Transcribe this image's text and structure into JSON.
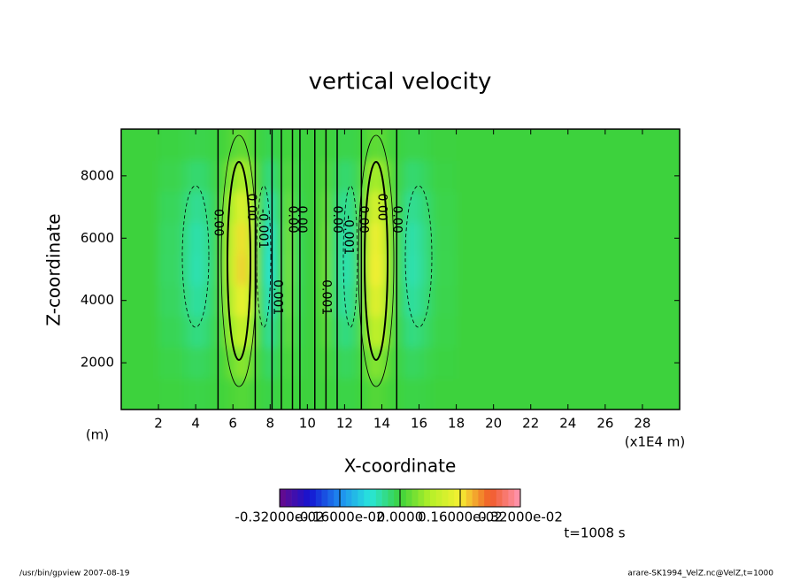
{
  "chart_data": {
    "type": "contour",
    "title": "vertical velocity",
    "xlabel": "X-coordinate",
    "ylabel": "Z-coordinate",
    "xunit": "(x1E4 m)",
    "yunit": "(m)",
    "time_label": "t=1008 s",
    "footer_left": "/usr/bin/gpview  2007-08-19",
    "footer_right": "arare-SK1994_VelZ.nc@VelZ,t=1000",
    "xlim": [
      0,
      30
    ],
    "ylim": [
      500,
      9500
    ],
    "xticks": [
      2,
      4,
      6,
      8,
      10,
      12,
      14,
      16,
      18,
      20,
      22,
      24,
      26,
      28
    ],
    "yticks": [
      2000,
      4000,
      6000,
      8000
    ],
    "x": [
      1,
      3,
      3.5,
      4,
      4.5,
      5,
      5.5,
      6,
      6.5,
      7,
      7.5,
      8,
      8.5,
      9,
      9.5,
      10,
      10.5,
      11,
      11.5,
      12,
      12.5,
      13,
      13.5,
      14,
      14.5,
      15,
      15.5,
      16,
      16.5,
      17,
      19,
      25
    ],
    "z": [
      1000,
      2000,
      3000,
      4000,
      5000,
      6000,
      7000,
      8000,
      9000
    ],
    "values": [
      [
        0,
        -2e-05,
        -4e-05,
        -6e-05,
        -5e-05,
        -2e-05,
        4e-05,
        0.00012,
        0.00018,
        0.0001,
        -2e-05,
        -8e-05,
        -2e-05,
        4e-05,
        -2e-05,
        0,
        0,
        4e-05,
        -3e-05,
        -6e-05,
        -4e-05,
        4e-05,
        0.00016,
        0.00014,
        4e-05,
        -2e-05,
        -6e-05,
        -5e-05,
        -3e-05,
        -1e-05,
        0,
        0
      ],
      [
        0,
        -6e-05,
        -0.00012,
        -0.00018,
        -0.00015,
        -6e-05,
        0.00012,
        0.00036,
        0.00054,
        0.0003,
        -6e-05,
        -0.00024,
        -6e-05,
        0.00012,
        -6e-05,
        0,
        0,
        0.00012,
        -9e-05,
        -0.00018,
        -0.00012,
        0.00012,
        0.00048,
        0.00042,
        0.00012,
        -6e-05,
        -0.00018,
        -0.00015,
        -9e-05,
        -3e-05,
        0,
        0
      ],
      [
        0,
        -0.00012,
        -0.00024,
        -0.00036,
        -0.0003,
        -0.00012,
        0.00024,
        0.00072,
        0.00108,
        0.0006,
        -0.00012,
        -0.00048,
        -0.00012,
        0.00024,
        -0.00012,
        0,
        0,
        0.00024,
        -0.00018,
        -0.00036,
        -0.00024,
        0.00024,
        0.00096,
        0.00084,
        0.00024,
        -0.00012,
        -0.00036,
        -0.0003,
        -0.00018,
        -6e-05,
        0,
        0
      ],
      [
        0,
        -0.00017,
        -0.00034,
        -0.00051,
        -0.000425,
        -0.00017,
        0.00034,
        0.00102,
        0.00153,
        0.00085,
        -0.00017,
        -0.00068,
        -0.00017,
        0.00034,
        -0.00017,
        0,
        0,
        0.00034,
        -0.000255,
        -0.00051,
        -0.00034,
        0.00034,
        0.00136,
        0.00119,
        0.00034,
        -0.00017,
        -0.00051,
        -0.000425,
        -0.000255,
        -8.5e-05,
        0,
        0
      ],
      [
        0,
        -0.0002,
        -0.0004,
        -0.0006,
        -0.0005,
        -0.0002,
        0.0004,
        0.0012,
        0.0018,
        0.001,
        -0.0002,
        -0.0008,
        -0.0002,
        0.0004,
        -0.0002,
        0,
        0,
        0.0004,
        -0.0003,
        -0.0006,
        -0.0004,
        0.0004,
        0.0016,
        0.0014,
        0.0004,
        -0.0002,
        -0.0006,
        -0.0005,
        -0.0003,
        -0.0001,
        0,
        0
      ],
      [
        0,
        -0.00019,
        -0.00038,
        -0.00057,
        -0.000475,
        -0.00019,
        0.00038,
        0.00114,
        0.00171,
        0.00095,
        -0.00019,
        -0.00076,
        -0.00019,
        0.00038,
        -0.00019,
        0,
        0,
        0.00038,
        -0.000285,
        -0.00057,
        -0.00038,
        0.00038,
        0.00152,
        0.00133,
        0.00038,
        -0.00019,
        -0.00057,
        -0.000475,
        -0.000285,
        -9.5e-05,
        0,
        0
      ],
      [
        0,
        -0.00015,
        -0.0003,
        -0.00045,
        -0.000375,
        -0.00015,
        0.0003,
        0.0009,
        0.00135,
        0.00075,
        -0.00015,
        -0.0006,
        -0.00015,
        0.0003,
        -0.00015,
        0,
        0,
        0.0003,
        -0.000225,
        -0.00045,
        -0.0003,
        0.0003,
        0.0012,
        0.00105,
        0.0003,
        -0.00015,
        -0.00045,
        -0.000375,
        -0.000225,
        -7.5e-05,
        0,
        0
      ],
      [
        0,
        -9e-05,
        -0.00018,
        -0.00027,
        -0.000225,
        -9e-05,
        0.00018,
        0.00054,
        0.00081,
        0.00045,
        -9e-05,
        -0.00036,
        -9e-05,
        0.00018,
        -9e-05,
        0,
        0,
        0.00018,
        -0.000135,
        -0.00027,
        -0.00018,
        0.00018,
        0.00072,
        0.00063,
        0.00018,
        -9e-05,
        -0.00027,
        -0.000225,
        -0.000135,
        -4.5e-05,
        0,
        0
      ],
      [
        0,
        -3e-05,
        -6e-05,
        -9e-05,
        -7.5e-05,
        -3e-05,
        6e-05,
        0.00018,
        0.00027,
        0.00015,
        -3e-05,
        -0.00012,
        -3e-05,
        6e-05,
        -3e-05,
        0,
        0,
        6e-05,
        -4.5e-05,
        -9e-05,
        -6e-05,
        6e-05,
        0.00024,
        0.00021,
        6e-05,
        -3e-05,
        -9e-05,
        -7.5e-05,
        -4.5e-05,
        -1.5e-05,
        0,
        0
      ]
    ],
    "zero_contours_x": [
      5.2,
      7.2,
      8.1,
      8.6,
      9.2,
      9.6,
      10.4,
      11.0,
      11.6,
      12.9,
      14.8
    ],
    "contour_labels": [
      {
        "x": 5.2,
        "z": 6500,
        "text": "0.00"
      },
      {
        "x": 7.0,
        "z": 7000,
        "text": "0.00"
      },
      {
        "x": 7.6,
        "z": 6300,
        "text": "-0.001"
      },
      {
        "x": 8.4,
        "z": 4100,
        "text": "0.001"
      },
      {
        "x": 9.2,
        "z": 6600,
        "text": "0.00"
      },
      {
        "x": 9.7,
        "z": 6600,
        "text": "0.00"
      },
      {
        "x": 11.0,
        "z": 4100,
        "text": "0.001"
      },
      {
        "x": 11.6,
        "z": 6600,
        "text": "0.00"
      },
      {
        "x": 12.2,
        "z": 6100,
        "text": "-0.001"
      },
      {
        "x": 13.0,
        "z": 6600,
        "text": "0.00"
      },
      {
        "x": 14.0,
        "z": 7000,
        "text": "0.00"
      },
      {
        "x": 14.8,
        "z": 6600,
        "text": "0.00"
      }
    ],
    "clim": [
      -0.0032,
      0.0032
    ],
    "cticks": [
      {
        "value": -0.0032,
        "label": "-0.32000e-02"
      },
      {
        "value": -0.0016,
        "label": "-0.16000e-02"
      },
      {
        "value": 0,
        "label": "0.0000"
      },
      {
        "value": 0.0016,
        "label": "0.16000e-02"
      },
      {
        "value": 0.0032,
        "label": "0.32000e-02"
      }
    ],
    "colormap": [
      "#6a0a8a",
      "#1414d2",
      "#1e8cf0",
      "#28e6dc",
      "#3cd23c",
      "#b4f028",
      "#f5f032",
      "#f05a28",
      "#ff96b4"
    ]
  }
}
